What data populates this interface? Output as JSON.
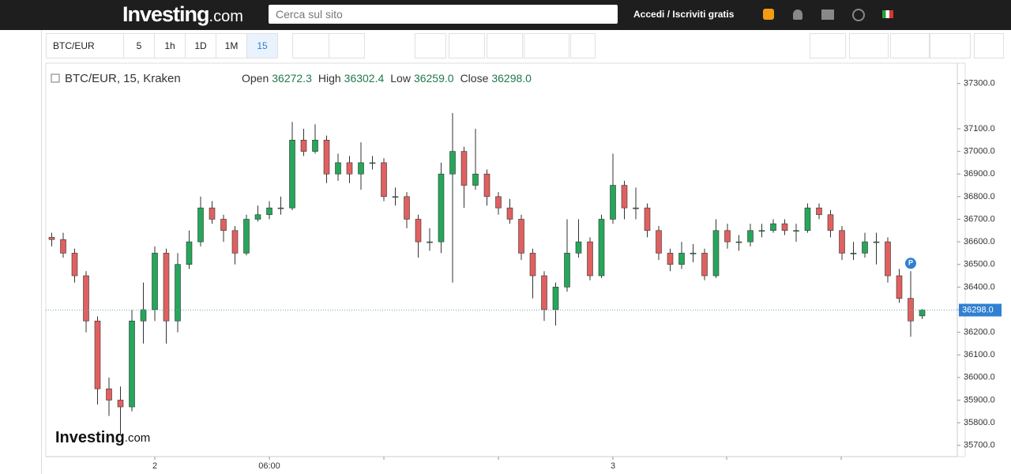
{
  "header": {
    "logo": "Investing",
    "logo_suffix": ".com",
    "search_placeholder": "Cerca sul sito",
    "login": "Accedi",
    "separator": "/",
    "signup": "Iscriviti gratis"
  },
  "toolbar": {
    "symbol": "BTC/EUR",
    "intervals": [
      "5",
      "1h",
      "1D",
      "1M",
      "15"
    ]
  },
  "chart_data": {
    "type": "candlestick",
    "title": "BTC/EUR, 15, Kraken",
    "legend": [
      {
        "name": "Open",
        "value_label": "36272.3"
      },
      {
        "name": "High",
        "value_label": "36302.4"
      },
      {
        "name": "Low",
        "value_label": "36259.0"
      },
      {
        "name": "Close",
        "value_label": "36298.0"
      }
    ],
    "categories": [
      null,
      null,
      null,
      null,
      null,
      null,
      null,
      null,
      null,
      "2",
      null,
      null,
      null,
      null,
      null,
      null,
      null,
      null,
      null,
      "06:00",
      null,
      null,
      null,
      null,
      null,
      null,
      null,
      null,
      null,
      null,
      null,
      null,
      null,
      null,
      null,
      null,
      null,
      null,
      null,
      null,
      null,
      null,
      null,
      null,
      null,
      null,
      null,
      null,
      null,
      "3",
      null,
      null,
      null,
      null,
      null,
      null,
      null,
      null,
      null,
      null,
      null,
      null,
      null,
      null,
      null,
      null,
      null,
      null,
      null,
      null,
      null,
      null,
      null,
      null,
      null,
      null,
      null
    ],
    "open": [
      36620,
      36610,
      36550,
      36450,
      36250,
      35950,
      35900,
      35870,
      36250,
      36300,
      36550,
      36250,
      36500,
      36600,
      36750,
      36700,
      36650,
      36550,
      36700,
      36720,
      36750,
      36750,
      37050,
      37000,
      37050,
      36900,
      36950,
      36900,
      36950,
      36950,
      36800,
      36800,
      36700,
      36600,
      36600,
      36900,
      37000,
      36850,
      36900,
      36800,
      36750,
      36700,
      36550,
      36450,
      36300,
      36400,
      36550,
      36600,
      36450,
      36700,
      36850,
      36750,
      36750,
      36650,
      36550,
      36500,
      36550,
      36550,
      36450,
      36650,
      36600,
      36600,
      36650,
      36650,
      36680,
      36650,
      36650,
      36750,
      36720,
      36650,
      36550,
      36550,
      36600,
      36600,
      36450,
      36350,
      36272.3
    ],
    "high": [
      36640,
      36640,
      36570,
      36470,
      36270,
      36000,
      35960,
      36300,
      36420,
      36580,
      36570,
      36550,
      36650,
      36800,
      36780,
      36720,
      36670,
      36720,
      36760,
      36780,
      36800,
      37130,
      37100,
      37120,
      37070,
      36990,
      36980,
      37040,
      36980,
      36970,
      36840,
      36820,
      36720,
      36660,
      36950,
      37170,
      37020,
      37100,
      36920,
      36820,
      36790,
      36720,
      36570,
      36470,
      36420,
      36700,
      36700,
      36620,
      36720,
      36990,
      36870,
      36840,
      36770,
      36670,
      36570,
      36600,
      36590,
      36570,
      36700,
      36680,
      36630,
      36680,
      36680,
      36700,
      36700,
      36680,
      36770,
      36770,
      36740,
      36670,
      36600,
      36640,
      36640,
      36620,
      36480,
      36470,
      36302.4
    ],
    "low": [
      36580,
      36530,
      36420,
      36200,
      35880,
      35830,
      35750,
      35850,
      36150,
      36250,
      36150,
      36200,
      36480,
      36580,
      36680,
      36600,
      36500,
      36540,
      36690,
      36700,
      36720,
      36740,
      36980,
      36990,
      36860,
      36870,
      36860,
      36830,
      36920,
      36780,
      36760,
      36660,
      36530,
      36560,
      36550,
      36420,
      36750,
      36830,
      36760,
      36720,
      36680,
      36520,
      36350,
      36250,
      36230,
      36380,
      36530,
      36430,
      36440,
      36680,
      36700,
      36700,
      36620,
      36520,
      36470,
      36480,
      36510,
      36430,
      36440,
      36570,
      36560,
      36580,
      36620,
      36640,
      36630,
      36600,
      36640,
      36700,
      36620,
      36520,
      36520,
      36530,
      36500,
      36420,
      36330,
      36180,
      36259
    ],
    "close": [
      36610,
      36550,
      36450,
      36250,
      35950,
      35900,
      35870,
      36250,
      36300,
      36550,
      36250,
      36500,
      36600,
      36750,
      36700,
      36650,
      36550,
      36700,
      36720,
      36750,
      36750,
      37050,
      37000,
      37050,
      36900,
      36950,
      36900,
      36950,
      36950,
      36800,
      36800,
      36700,
      36600,
      36600,
      36900,
      37000,
      36850,
      36900,
      36800,
      36750,
      36700,
      36550,
      36450,
      36300,
      36400,
      36550,
      36600,
      36450,
      36700,
      36850,
      36750,
      36750,
      36650,
      36550,
      36500,
      36550,
      36550,
      36450,
      36650,
      36600,
      36600,
      36650,
      36650,
      36680,
      36650,
      36650,
      36750,
      36720,
      36650,
      36550,
      36550,
      36600,
      36600,
      36450,
      36350,
      36250,
      36298
    ],
    "up_color": "#26a65b",
    "down_color": "#e06060",
    "ylim": [
      35650,
      37390
    ],
    "yticks": [
      {
        "value": 35700,
        "label": "35700.0"
      },
      {
        "value": 35800,
        "label": "35800.0"
      },
      {
        "value": 35900,
        "label": "35900.0"
      },
      {
        "value": 36000,
        "label": "36000.0"
      },
      {
        "value": 36100,
        "label": "36100.0"
      },
      {
        "value": 36200,
        "label": "36200.0"
      },
      {
        "value": 36300,
        "label": "36300.0"
      },
      {
        "value": 36400,
        "label": "36400.0"
      },
      {
        "value": 36500,
        "label": "36500.0"
      },
      {
        "value": 36600,
        "label": "36600.0"
      },
      {
        "value": 36700,
        "label": "36700.0"
      },
      {
        "value": 36800,
        "label": "36800.0"
      },
      {
        "value": 36900,
        "label": "36900.0"
      },
      {
        "value": 37000,
        "label": "37000.0"
      },
      {
        "value": 37100,
        "label": "37100.0"
      },
      {
        "value": 37300,
        "label": "37300.0"
      }
    ],
    "last_price_label": "36298.0",
    "marker": "P",
    "watermark": "Investing",
    "watermark_suffix": ".com"
  }
}
